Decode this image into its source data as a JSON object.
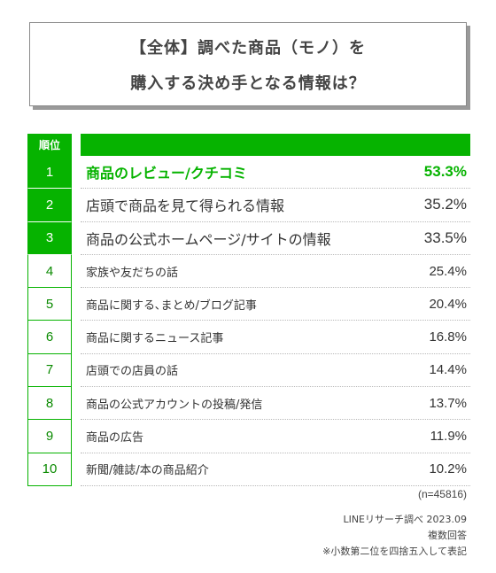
{
  "title": {
    "line1": "【全体】調べた商品（モノ）を",
    "line2": "購入する決め手となる情報は？"
  },
  "table_header": {
    "rank_label": "順位"
  },
  "colors": {
    "accent": "#06b300",
    "text": "#333333",
    "border": "#8a8a8a"
  },
  "chart_data": {
    "type": "bar",
    "title": "【全体】調べた商品（モノ）を購入する決め手となる情報は？",
    "unit": "%",
    "rows": [
      {
        "rank": "1",
        "label": "商品のレビュー/クチコミ",
        "value_text": "53.3%",
        "value": 53.3
      },
      {
        "rank": "2",
        "label": "店頭で商品を見て得られる情報",
        "value_text": "35.2%",
        "value": 35.2
      },
      {
        "rank": "3",
        "label": "商品の公式ホームページ/サイトの情報",
        "value_text": "33.5%",
        "value": 33.5
      },
      {
        "rank": "4",
        "label": "家族や友だちの話",
        "value_text": "25.4%",
        "value": 25.4
      },
      {
        "rank": "5",
        "label": "商品に関する､まとめ/ブログ記事",
        "value_text": "20.4%",
        "value": 20.4
      },
      {
        "rank": "6",
        "label": "商品に関するニュース記事",
        "value_text": "16.8%",
        "value": 16.8
      },
      {
        "rank": "7",
        "label": "店頭での店員の話",
        "value_text": "14.4%",
        "value": 14.4
      },
      {
        "rank": "8",
        "label": "商品の公式アカウントの投稿/発信",
        "value_text": "13.7%",
        "value": 13.7
      },
      {
        "rank": "9",
        "label": "商品の広告",
        "value_text": "11.9%",
        "value": 11.9
      },
      {
        "rank": "10",
        "label": "新聞/雑誌/本の商品紹介",
        "value_text": "10.2%",
        "value": 10.2
      }
    ]
  },
  "footer": {
    "sample": "(n=45816)",
    "source": "LINEリサーチ調べ 2023.09",
    "multi": "複数回答",
    "rounding": "※小数第二位を四捨五入して表記"
  }
}
